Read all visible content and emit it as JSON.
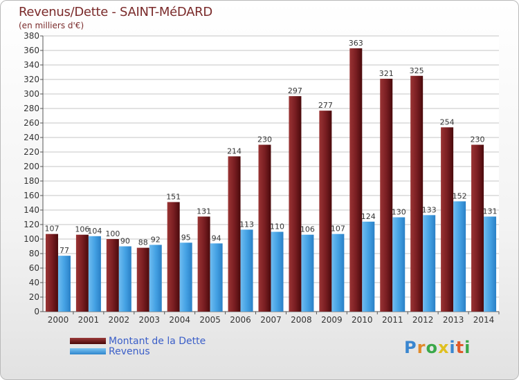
{
  "header": {
    "title": "Revenus/Dette - SAINT-MéDARD",
    "subtitle": "(en milliers d'€)"
  },
  "chart_data": {
    "type": "bar",
    "categories": [
      "2000",
      "2001",
      "2002",
      "2003",
      "2004",
      "2005",
      "2006",
      "2007",
      "2008",
      "2009",
      "2010",
      "2011",
      "2012",
      "2013",
      "2014"
    ],
    "series": [
      {
        "name": "Montant de la Dette",
        "values": [
          107,
          106,
          100,
          88,
          151,
          131,
          214,
          230,
          297,
          277,
          363,
          321,
          325,
          254,
          230
        ],
        "color": "#7a1f22"
      },
      {
        "name": "Revenus",
        "values": [
          77,
          104,
          90,
          92,
          95,
          94,
          113,
          110,
          106,
          107,
          124,
          130,
          133,
          152,
          131
        ],
        "color": "#3f9ee0"
      }
    ],
    "ylim": [
      0,
      380
    ],
    "ytick_step": 20,
    "grid": true,
    "legend_position": "bottom-left"
  },
  "legend": {
    "items": [
      {
        "label": "Montant de la Dette",
        "color": "#5a1010"
      },
      {
        "label": "Revenus",
        "color": "#3f9ee0"
      }
    ]
  },
  "brand": {
    "letters": [
      "P",
      "r",
      "o",
      "x",
      "i",
      "t",
      "i"
    ],
    "colors": [
      "#3a86d0",
      "#e08a2a",
      "#3aa84a",
      "#e0c020",
      "#3a86d0",
      "#e05a2a",
      "#3aa84a"
    ]
  }
}
